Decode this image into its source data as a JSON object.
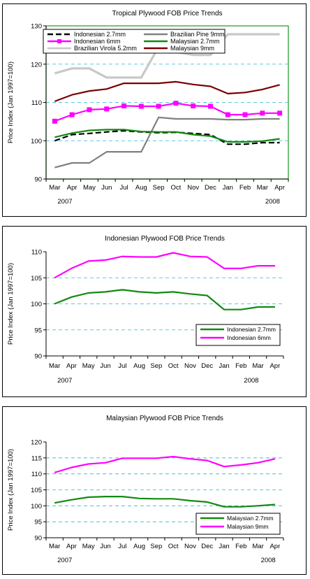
{
  "chart_data": [
    {
      "type": "line",
      "title": "Tropical Plywood FOB Price Trends",
      "ylabel": "Price Index (Jan 1997=100)",
      "ylim": [
        90,
        130
      ],
      "yticks": [
        90,
        100,
        110,
        120,
        130
      ],
      "categories": [
        "Mar",
        "Apr",
        "May",
        "Jun",
        "Jul",
        "Aug",
        "Sep",
        "Oct",
        "Nov",
        "Dec",
        "Jan",
        "Feb",
        "Mar",
        "Apr"
      ],
      "year_labels": [
        {
          "index": 0,
          "label": "2007"
        },
        {
          "index": 12,
          "label": "2008"
        }
      ],
      "legend": "top",
      "grid": true,
      "gridlines": [
        100,
        110,
        120
      ],
      "plot_background": "#ffffff",
      "plot_border": "#2e9e2e",
      "series": [
        {
          "name": "Indonesian 2.7mm",
          "color": "#000000",
          "style": "dashed",
          "values": [
            100,
            101.6,
            101.9,
            102.3,
            102.6,
            102.3,
            102.1,
            102.2,
            101.9,
            101.6,
            99.1,
            99.1,
            99.5,
            99.5
          ]
        },
        {
          "name": "Indonesian 6mm",
          "color": "#ff00ff",
          "marker": "square",
          "values": [
            105.1,
            106.8,
            108.1,
            108.3,
            109.1,
            109,
            109,
            109.8,
            109.1,
            109,
            106.8,
            106.8,
            107.2,
            107.2
          ]
        },
        {
          "name": "Brazilian Virola 5.2mm",
          "color": "#c8c8c8",
          "values": [
            117.6,
            118.9,
            118.9,
            116.5,
            116.5,
            116.5,
            124.5,
            123.2,
            122.4,
            122.4,
            127.8,
            127.8,
            127.8,
            127.8
          ]
        },
        {
          "name": "Brazilian Pine 9mm",
          "color": "#808080",
          "values": [
            93,
            94.2,
            94.2,
            97.1,
            97.1,
            97.1,
            106.1,
            105.7,
            105.7,
            105.7,
            105.5,
            105.5,
            105.7,
            105.7
          ]
        },
        {
          "name": "Malaysian 2.7mm",
          "color": "#118a11",
          "values": [
            100.9,
            102,
            102.7,
            102.9,
            102.9,
            102.4,
            102.3,
            102.3,
            101.6,
            101.2,
            99.7,
            99.7,
            99.9,
            100.5
          ]
        },
        {
          "name": "Malaysian 9mm",
          "color": "#7a0000",
          "values": [
            110.3,
            112,
            113,
            113.5,
            115,
            115,
            115,
            115.4,
            114.7,
            114.2,
            112.3,
            112.6,
            113.4,
            114.6
          ]
        }
      ]
    },
    {
      "type": "line",
      "title": "Indonesian Plywood FOB Price Trends",
      "ylabel": "Price Index (Jan 1997=100)",
      "ylim": [
        90,
        110
      ],
      "yticks": [
        90,
        95,
        100,
        105,
        110
      ],
      "categories": [
        "Mar",
        "Apr",
        "May",
        "Jun",
        "Jul",
        "Aug",
        "Sep",
        "Oct",
        "Nov",
        "Dec",
        "Jan",
        "Feb",
        "Mar",
        "Apr"
      ],
      "year_labels": [
        {
          "index": 0,
          "label": "2007"
        },
        {
          "index": 11,
          "label": "2008"
        }
      ],
      "legend": "bottom-right",
      "grid": true,
      "gridlines": [
        95,
        100,
        105
      ],
      "plot_background": "#ffffff",
      "plot_border": "#ffffff",
      "series": [
        {
          "name": "Indonesian 2.7mm",
          "color": "#118a11",
          "values": [
            100,
            101.3,
            102.1,
            102.3,
            102.7,
            102.3,
            102.1,
            102.3,
            101.9,
            101.6,
            98.9,
            98.9,
            99.4,
            99.4
          ]
        },
        {
          "name": "Indonesian 6mm",
          "color": "#ff00ff",
          "values": [
            105,
            106.8,
            108.2,
            108.4,
            109.1,
            109,
            109,
            109.8,
            109.1,
            109,
            106.8,
            106.8,
            107.3,
            107.3
          ]
        }
      ]
    },
    {
      "type": "line",
      "title": "Malaysian Plywood FOB Price Trends",
      "ylabel": "Price Index (Jan 1997=100)",
      "ylim": [
        90,
        120
      ],
      "yticks": [
        90,
        95,
        100,
        105,
        110,
        115,
        120
      ],
      "categories": [
        "Mar",
        "Apr",
        "May",
        "Jun",
        "Jul",
        "Aug",
        "Sep",
        "Oct",
        "Nov",
        "Dec",
        "Jan",
        "Feb",
        "Mar",
        "Apr"
      ],
      "year_labels": [
        {
          "index": 0,
          "label": "2007"
        },
        {
          "index": 12,
          "label": "2008"
        }
      ],
      "legend": "bottom-right",
      "grid": true,
      "gridlines": [
        95,
        100,
        105,
        110,
        115
      ],
      "plot_background": "#ffffff",
      "plot_border": "#ffffff",
      "series": [
        {
          "name": "Malaysian 2.7mm",
          "color": "#118a11",
          "values": [
            100.9,
            101.9,
            102.7,
            102.9,
            102.9,
            102.3,
            102.2,
            102.2,
            101.6,
            101.2,
            99.7,
            99.7,
            100,
            100.4
          ]
        },
        {
          "name": "Malaysian 9mm",
          "color": "#ff00ff",
          "values": [
            110.4,
            112,
            113.1,
            113.5,
            114.9,
            114.9,
            114.9,
            115.4,
            114.7,
            114.2,
            112.3,
            112.8,
            113.5,
            114.7
          ]
        }
      ]
    }
  ]
}
